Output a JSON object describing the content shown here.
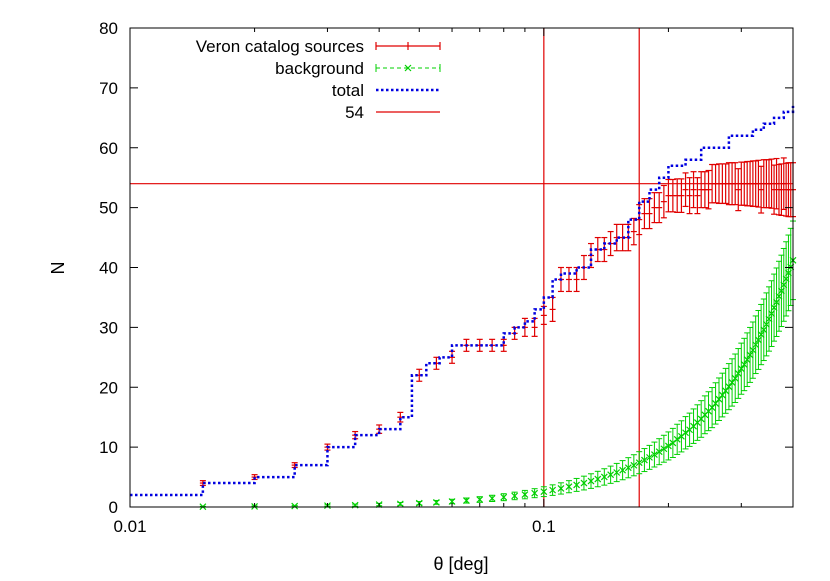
{
  "chart_data": {
    "type": "line",
    "xscale": "log",
    "xlim": [
      0.01,
      0.4
    ],
    "ylim": [
      0,
      80
    ],
    "xlabel": "θ [deg]",
    "ylabel": "N",
    "x_ticks": [
      0.01,
      0.1
    ],
    "x_tick_labels": [
      "0.01",
      "0.1"
    ],
    "y_ticks": [
      0,
      10,
      20,
      30,
      40,
      50,
      60,
      70,
      80
    ],
    "y_tick_labels": [
      "0",
      "10",
      "20",
      "30",
      "40",
      "50",
      "60",
      "70",
      "80"
    ],
    "legend_position": "top-left",
    "grid": false,
    "series": [
      {
        "name": "Veron catalog sources",
        "kind": "errorbars",
        "color": "#e00000",
        "x": [
          0.015,
          0.02,
          0.025,
          0.03,
          0.035,
          0.04,
          0.045,
          0.05,
          0.055,
          0.06,
          0.065,
          0.07,
          0.075,
          0.08,
          0.085,
          0.09,
          0.095,
          0.1,
          0.105,
          0.11,
          0.115,
          0.12,
          0.125,
          0.13,
          0.135,
          0.14,
          0.145,
          0.15,
          0.155,
          0.16,
          0.165,
          0.17,
          0.175,
          0.18,
          0.185,
          0.19,
          0.195,
          0.2,
          0.205,
          0.21,
          0.215,
          0.22,
          0.225,
          0.23,
          0.235,
          0.24,
          0.245,
          0.25,
          0.255,
          0.26,
          0.265,
          0.27,
          0.275,
          0.28,
          0.285,
          0.29,
          0.295,
          0.3,
          0.305,
          0.31,
          0.315,
          0.32,
          0.325,
          0.33,
          0.335,
          0.34,
          0.345,
          0.35,
          0.355,
          0.36,
          0.365,
          0.37,
          0.375,
          0.38,
          0.385,
          0.39,
          0.395,
          0.4
        ],
        "y": [
          4,
          5,
          7,
          10,
          12,
          13,
          15,
          22,
          24,
          25,
          27,
          27,
          27,
          27,
          29,
          30,
          30,
          32,
          33,
          38,
          38,
          38,
          40,
          42,
          43,
          43,
          44,
          45,
          45,
          45,
          46,
          48,
          49,
          49,
          50,
          50,
          51,
          52,
          52,
          52,
          52,
          53,
          52,
          53,
          52,
          53,
          53,
          53,
          54,
          54,
          54,
          54,
          54,
          54,
          54,
          54,
          53,
          54,
          54,
          54,
          54,
          54,
          54,
          54,
          53,
          54,
          54,
          54,
          54,
          53,
          54,
          53,
          53,
          54,
          53,
          53,
          53,
          53
        ],
        "yerr_low": [
          0.4,
          0.4,
          0.4,
          0.5,
          0.6,
          0.7,
          0.8,
          1,
          1,
          1,
          1,
          1,
          1,
          1,
          1,
          1.5,
          1.5,
          1.5,
          2,
          2,
          2,
          2,
          2,
          2,
          2,
          2,
          2,
          2.2,
          2.2,
          2.2,
          2.2,
          2.5,
          2.5,
          2.5,
          2.5,
          2.5,
          2.7,
          2.7,
          2.7,
          2.8,
          2.8,
          2.8,
          3,
          3,
          3,
          3,
          3,
          3.2,
          3.2,
          3.2,
          3.3,
          3.3,
          3.3,
          3.5,
          3.5,
          3.5,
          3.5,
          3.6,
          3.6,
          3.7,
          3.7,
          3.8,
          3.8,
          3.9,
          3.9,
          4,
          4,
          4,
          4.1,
          4.1,
          4.2,
          4.2,
          4.3,
          4.3,
          4.4,
          4.5,
          4.5,
          4.5
        ],
        "yerr_high": [
          0.4,
          0.4,
          0.4,
          0.5,
          0.6,
          0.7,
          0.8,
          1,
          1,
          1,
          1,
          1,
          1,
          1,
          1,
          1.5,
          1.5,
          1.5,
          2,
          2,
          2,
          2,
          2,
          2,
          2,
          2,
          2,
          2.2,
          2.2,
          2.2,
          2.2,
          2.5,
          2.5,
          2.5,
          2.5,
          2.5,
          2.7,
          2.7,
          2.7,
          2.8,
          2.8,
          2.8,
          3,
          3,
          3,
          3,
          3,
          3.2,
          3.2,
          3.2,
          3.3,
          3.3,
          3.3,
          3.5,
          3.5,
          3.5,
          3.5,
          3.6,
          3.6,
          3.7,
          3.7,
          3.8,
          3.8,
          3.9,
          3.9,
          4,
          4,
          4,
          4.1,
          4.1,
          4.2,
          4.2,
          4.3,
          4.3,
          4.4,
          4.5,
          4.5,
          4.5
        ]
      },
      {
        "name": "background",
        "kind": "points-errorbars",
        "color": "#00d000",
        "x": [
          0.015,
          0.02,
          0.025,
          0.03,
          0.035,
          0.04,
          0.045,
          0.05,
          0.055,
          0.06,
          0.065,
          0.07,
          0.075,
          0.08,
          0.085,
          0.09,
          0.095,
          0.1,
          0.105,
          0.11,
          0.115,
          0.12,
          0.125,
          0.13,
          0.135,
          0.14,
          0.145,
          0.15,
          0.155,
          0.16,
          0.165,
          0.17,
          0.175,
          0.18,
          0.185,
          0.19,
          0.195,
          0.2,
          0.205,
          0.21,
          0.215,
          0.22,
          0.225,
          0.23,
          0.235,
          0.24,
          0.245,
          0.25,
          0.255,
          0.26,
          0.265,
          0.27,
          0.275,
          0.28,
          0.285,
          0.29,
          0.295,
          0.3,
          0.305,
          0.31,
          0.315,
          0.32,
          0.325,
          0.33,
          0.335,
          0.34,
          0.345,
          0.35,
          0.355,
          0.36,
          0.365,
          0.37,
          0.375,
          0.38,
          0.385,
          0.39,
          0.395,
          0.4
        ],
        "y": [
          0.06,
          0.1,
          0.16,
          0.23,
          0.31,
          0.41,
          0.52,
          0.64,
          0.77,
          0.92,
          1.08,
          1.25,
          1.44,
          1.64,
          1.85,
          2.07,
          2.31,
          2.56,
          2.82,
          3.1,
          3.39,
          3.69,
          4,
          4.33,
          4.67,
          5.02,
          5.39,
          5.76,
          6.15,
          6.56,
          6.97,
          7.4,
          7.84,
          8.29,
          8.76,
          9.24,
          9.73,
          10.2,
          10.7,
          11.3,
          11.8,
          12.4,
          12.9,
          13.5,
          14.1,
          14.7,
          15.4,
          16,
          16.6,
          17.3,
          18,
          18.7,
          19.4,
          20.1,
          20.8,
          21.5,
          22.3,
          23.1,
          23.8,
          24.6,
          25.4,
          26.2,
          27.1,
          27.9,
          28.8,
          29.6,
          30.5,
          31.4,
          32.3,
          33.3,
          34.2,
          35.2,
          36.1,
          37.1,
          38.1,
          39.1,
          40.1,
          41.2
        ],
        "yerr": [
          0.05,
          0.07,
          0.1,
          0.13,
          0.17,
          0.2,
          0.24,
          0.28,
          0.32,
          0.37,
          0.42,
          0.47,
          0.52,
          0.58,
          0.63,
          0.7,
          0.75,
          0.82,
          0.88,
          0.94,
          1.01,
          1.08,
          1.15,
          1.22,
          1.29,
          1.37,
          1.44,
          1.52,
          1.6,
          1.68,
          1.76,
          1.84,
          1.92,
          2,
          2.08,
          2.17,
          2.25,
          2.34,
          2.43,
          2.52,
          2.6,
          2.7,
          2.78,
          2.88,
          2.97,
          3.06,
          3.16,
          3.25,
          3.35,
          3.45,
          3.55,
          3.65,
          3.75,
          3.85,
          3.95,
          4.05,
          4.16,
          4.27,
          4.37,
          4.48,
          4.59,
          4.7,
          4.81,
          4.92,
          5.03,
          5.14,
          5.26,
          5.37,
          5.49,
          5.6,
          5.72,
          5.84,
          5.96,
          6.08,
          6.2,
          6.32,
          6.44,
          6.56
        ]
      },
      {
        "name": "total",
        "kind": "dotted-line",
        "color": "#0000e0",
        "x": [
          0.01,
          0.015,
          0.02,
          0.025,
          0.03,
          0.035,
          0.04,
          0.045,
          0.048,
          0.052,
          0.056,
          0.06,
          0.065,
          0.07,
          0.075,
          0.08,
          0.085,
          0.09,
          0.095,
          0.1,
          0.105,
          0.11,
          0.12,
          0.13,
          0.14,
          0.15,
          0.16,
          0.17,
          0.18,
          0.19,
          0.2,
          0.21,
          0.22,
          0.24,
          0.26,
          0.28,
          0.3,
          0.32,
          0.34,
          0.36,
          0.38,
          0.4
        ],
        "y": [
          2,
          4,
          5,
          7,
          10,
          12,
          13,
          15,
          22,
          24,
          25,
          27,
          27,
          27,
          27,
          29,
          30,
          31,
          33,
          35,
          38,
          39,
          40,
          43,
          44,
          45,
          48,
          51,
          53,
          55,
          57,
          57,
          58,
          60,
          60,
          62,
          62,
          63,
          64,
          65,
          66,
          67
        ]
      },
      {
        "name": "54",
        "kind": "line",
        "color": "#e00000",
        "y_value": 54
      }
    ],
    "vertical_lines": [
      0.1,
      0.17
    ]
  }
}
